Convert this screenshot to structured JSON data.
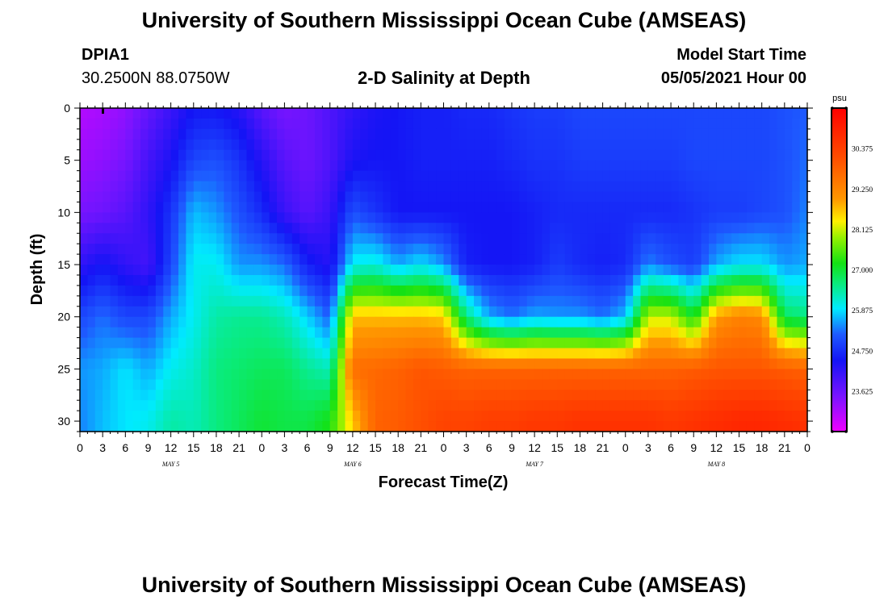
{
  "title": "University of Southern Mississippi Ocean Cube (AMSEAS)",
  "station": {
    "id": "DPIA1",
    "coords": "30.2500N  88.0750W"
  },
  "model_start": {
    "label": "Model Start Time",
    "value": "05/05/2021 Hour 00"
  },
  "footer_title": "University of Southern Mississippi Ocean Cube (AMSEAS)",
  "chart_data": {
    "type": "heatmap",
    "title": "2-D Salinity at Depth",
    "xlabel": "Forecast Time(Z)",
    "ylabel": "Depth (ft)",
    "xlim": [
      0,
      96
    ],
    "ylim": [
      0,
      31
    ],
    "x_tick_labels": [
      "0",
      "3",
      "6",
      "9",
      "12",
      "15",
      "18",
      "21",
      "0",
      "3",
      "6",
      "9",
      "12",
      "15",
      "18",
      "21",
      "0",
      "3",
      "6",
      "9",
      "12",
      "15",
      "18",
      "21",
      "0",
      "3",
      "6",
      "9",
      "12",
      "15",
      "18",
      "21",
      "0"
    ],
    "date_labels": [
      {
        "text": "MAY  5",
        "hour": 12
      },
      {
        "text": "MAY  6",
        "hour": 36
      },
      {
        "text": "MAY  7",
        "hour": 60
      },
      {
        "text": "MAY  8",
        "hour": 84
      }
    ],
    "y_ticks": [
      0,
      5,
      10,
      15,
      20,
      25,
      30
    ],
    "colorbar": {
      "unit": "psu",
      "min": 22.5,
      "max": 31.5,
      "ticks": [
        "30.375",
        "29.250",
        "28.125",
        "27.000",
        "25.875",
        "24.750",
        "23.625"
      ],
      "tick_values": [
        30.375,
        29.25,
        28.125,
        27.0,
        25.875,
        24.75,
        23.625
      ]
    },
    "times": [
      0,
      3,
      6,
      9,
      12,
      15,
      18,
      21,
      24,
      27,
      30,
      33,
      36,
      39,
      42,
      45,
      48,
      51,
      54,
      57,
      60,
      63,
      66,
      69,
      72,
      75,
      78,
      81,
      84,
      87,
      90,
      93,
      96
    ],
    "depths": [
      0,
      5,
      10,
      15,
      20,
      25,
      30
    ],
    "salinity": [
      [
        23.0,
        23.1,
        23.3,
        23.7,
        24.1,
        24.5,
        24.5,
        24.3,
        23.8,
        23.5,
        23.6,
        23.9,
        24.2,
        24.4,
        24.5,
        24.6,
        24.6,
        24.7,
        24.7,
        24.8,
        24.9,
        24.9,
        25.0,
        25.0,
        25.0,
        25.0,
        25.0,
        25.0,
        25.0,
        25.0,
        25.0,
        25.1,
        25.2
      ],
      [
        23.2,
        23.3,
        23.5,
        24.0,
        24.4,
        25.0,
        25.1,
        24.8,
        24.3,
        23.8,
        23.6,
        23.9,
        24.4,
        24.5,
        24.5,
        24.6,
        24.6,
        24.6,
        24.6,
        24.7,
        24.8,
        24.8,
        24.9,
        24.9,
        24.9,
        24.9,
        24.9,
        25.0,
        25.0,
        25.0,
        25.0,
        25.1,
        25.3
      ],
      [
        23.5,
        23.6,
        23.8,
        24.2,
        24.8,
        25.7,
        25.5,
        25.1,
        24.7,
        24.1,
        23.8,
        24.1,
        25.1,
        24.8,
        24.5,
        24.5,
        24.5,
        24.5,
        24.5,
        24.5,
        24.6,
        24.7,
        24.7,
        24.7,
        24.7,
        24.7,
        24.7,
        24.8,
        24.9,
        24.9,
        25.0,
        25.1,
        25.4
      ],
      [
        24.2,
        24.5,
        24.2,
        24.0,
        25.0,
        26.0,
        26.0,
        25.5,
        25.5,
        25.3,
        24.6,
        24.3,
        26.0,
        26.1,
        25.6,
        25.9,
        25.5,
        24.6,
        24.5,
        24.5,
        24.6,
        24.9,
        24.7,
        24.6,
        24.7,
        25.4,
        25.1,
        24.9,
        25.6,
        25.9,
        25.9,
        25.5,
        25.6
      ],
      [
        25.0,
        25.3,
        25.0,
        25.0,
        25.6,
        26.0,
        26.4,
        26.5,
        26.5,
        26.3,
        25.8,
        25.2,
        28.7,
        28.7,
        28.7,
        28.7,
        28.6,
        26.6,
        25.6,
        25.3,
        25.6,
        25.5,
        25.5,
        25.3,
        25.7,
        28.1,
        28.1,
        27.1,
        29.0,
        29.3,
        29.2,
        26.8,
        26.6
      ],
      [
        25.5,
        25.6,
        25.9,
        25.6,
        26.0,
        26.2,
        26.6,
        26.7,
        26.8,
        26.8,
        26.5,
        26.3,
        29.6,
        29.7,
        29.8,
        30.0,
        29.9,
        29.8,
        29.8,
        29.8,
        29.8,
        29.8,
        29.8,
        29.8,
        29.8,
        29.8,
        29.8,
        29.9,
        30.0,
        30.0,
        30.0,
        29.9,
        29.8
      ],
      [
        25.4,
        25.7,
        25.9,
        26.0,
        26.4,
        26.3,
        26.6,
        26.8,
        27.0,
        26.9,
        26.9,
        27.2,
        28.6,
        29.8,
        29.9,
        30.1,
        30.3,
        30.3,
        30.4,
        30.4,
        30.5,
        30.5,
        30.6,
        30.6,
        30.6,
        30.6,
        30.5,
        30.6,
        30.7,
        30.8,
        30.8,
        30.7,
        30.6
      ]
    ]
  }
}
